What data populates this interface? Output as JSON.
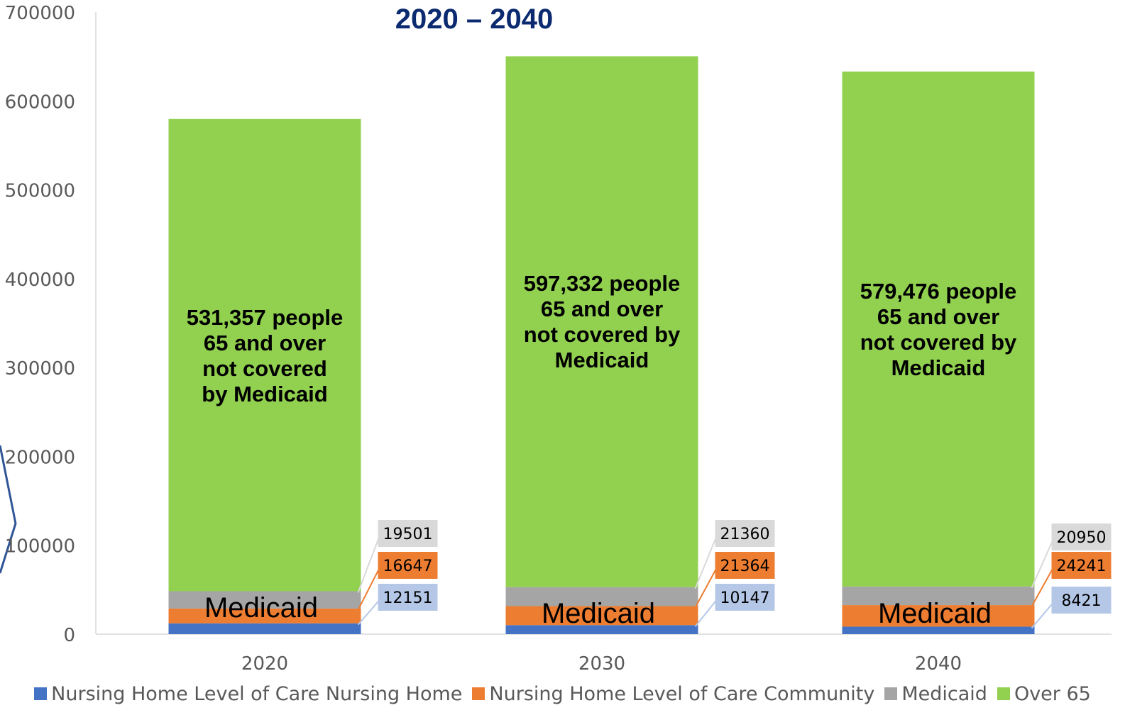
{
  "chart_data": {
    "type": "bar",
    "stacked": true,
    "title": "2020 – 2040",
    "categories": [
      "2020",
      "2030",
      "2040"
    ],
    "ylim": [
      0,
      700000
    ],
    "yticks": [
      "0",
      "100000",
      "200000",
      "300000",
      "400000",
      "500000",
      "600000",
      "700000"
    ],
    "grid": false,
    "legend_position": "bottom",
    "series": [
      {
        "name": "Nursing Home Level of Care Nursing Home",
        "color": "#4472C4",
        "values": [
          12151,
          10147,
          8421
        ],
        "labels": [
          "12151",
          "10147",
          "8421"
        ],
        "label_bg": "#B4C7E7"
      },
      {
        "name": "Nursing Home Level of Care Community",
        "color": "#ED7D31",
        "values": [
          16647,
          21364,
          24241
        ],
        "labels": [
          "16647",
          "21364",
          "24241"
        ],
        "label_bg": "#ED7D31"
      },
      {
        "name": "Medicaid",
        "color": "#A5A5A5",
        "values": [
          19501,
          21360,
          20950
        ],
        "labels": [
          "19501",
          "21360",
          "20950"
        ],
        "label_bg": "#D9D9D9"
      },
      {
        "name": "Over 65",
        "color": "#92D050",
        "values": [
          531357,
          597332,
          579476
        ]
      }
    ],
    "annotations": {
      "over65": [
        [
          "531,357 people",
          "65 and over",
          "not covered",
          "by Medicaid"
        ],
        [
          "597,332 people",
          "65 and over",
          "not covered by",
          "Medicaid"
        ],
        [
          "579,476 people",
          "65 and over",
          "not covered by",
          "Medicaid"
        ]
      ],
      "medicaid": [
        "Medicaid",
        "Medicaid",
        "Medicaid"
      ]
    }
  }
}
